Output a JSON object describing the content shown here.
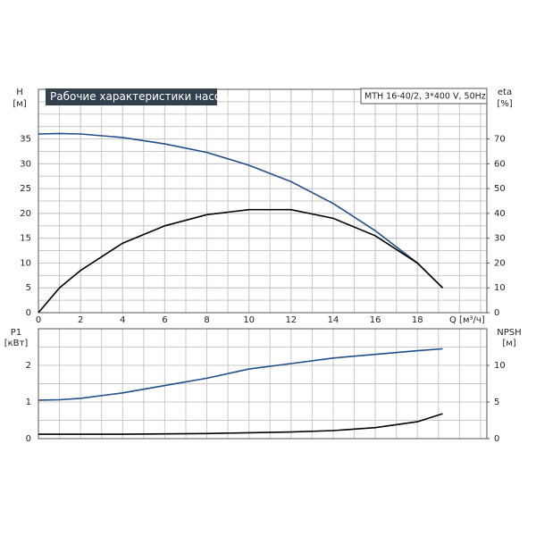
{
  "chart_data": [
    {
      "type": "line",
      "title": "Рабочие характеристики насоса",
      "subtitle": "MTH 16-40/2, 3*400 V, 50Hz",
      "x_label": "Q [м³/ч]",
      "y_label": "H",
      "y_unit": "[м]",
      "y2_label": "eta",
      "y2_unit": "[%]",
      "x": [
        0,
        1,
        2,
        4,
        6,
        8,
        10,
        12,
        14,
        16,
        18,
        19.2
      ],
      "series": [
        {
          "name": "H",
          "color": "#1f4e8c",
          "values": [
            36,
            36.1,
            36,
            35.3,
            34,
            32.3,
            29.7,
            26.4,
            22,
            16.5,
            10,
            5
          ]
        },
        {
          "name": "eta",
          "color": "#000000",
          "axis": "y2",
          "values": [
            0,
            10,
            17,
            28,
            35,
            39.5,
            41.5,
            41.5,
            38,
            31,
            20,
            10
          ]
        }
      ],
      "xlim": [
        0,
        21.3
      ],
      "xticks": [
        0,
        2,
        4,
        6,
        8,
        10,
        12,
        14,
        16,
        18
      ],
      "ylim": [
        0,
        45
      ],
      "yticks": [
        0,
        5,
        10,
        15,
        20,
        25,
        30,
        35
      ],
      "y2lim": [
        0,
        90
      ],
      "y2ticks": [
        0,
        10,
        20,
        30,
        40,
        50,
        60,
        70
      ],
      "grid": true
    },
    {
      "type": "line",
      "y_label": "P1",
      "y_unit": "[кВт]",
      "y2_label": "NPSH",
      "y2_unit": "[м]",
      "x": [
        0,
        1,
        2,
        4,
        6,
        8,
        10,
        12,
        14,
        16,
        18,
        19.2
      ],
      "series": [
        {
          "name": "P1",
          "color": "#1f4e8c",
          "values": [
            1.05,
            1.06,
            1.1,
            1.25,
            1.45,
            1.65,
            1.9,
            2.05,
            2.2,
            2.3,
            2.4,
            2.45
          ]
        },
        {
          "name": "NPSH",
          "color": "#000000",
          "axis": "y2",
          "values": [
            0.6,
            0.6,
            0.6,
            0.6,
            0.65,
            0.7,
            0.8,
            0.9,
            1.1,
            1.5,
            2.3,
            3.4
          ]
        }
      ],
      "xlim": [
        0,
        21.3
      ],
      "ylim": [
        0,
        3
      ],
      "yticks": [
        0,
        1,
        2
      ],
      "y2lim": [
        0,
        15
      ],
      "y2ticks": [
        0,
        5,
        10
      ],
      "grid": true
    }
  ]
}
